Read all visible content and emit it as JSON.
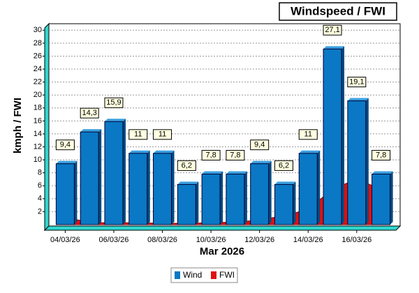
{
  "chart_data": {
    "type": "bar",
    "title": "Windspeed / FWI",
    "y_label": "kmph / FWI",
    "x_label": "Mar 2026",
    "categories": [
      "04/03/26",
      null,
      "06/03/26",
      null,
      "08/03/26",
      null,
      "10/03/26",
      null,
      "12/03/26",
      null,
      "14/03/26",
      null,
      "16/03/26",
      null
    ],
    "series": [
      {
        "name": "Wind",
        "color": "#0a78c4",
        "mark": "bar",
        "values": [
          9.4,
          14.3,
          15.9,
          11,
          11,
          6.2,
          7.8,
          7.8,
          9.4,
          6.2,
          11,
          27.1,
          19.1,
          7.8
        ],
        "value_labels": [
          "9,4",
          "14,3",
          "15,9",
          "11",
          "11",
          "6,2",
          "7,8",
          "7,8",
          "9,4",
          "6,2",
          "11",
          "27,1",
          "19,1",
          "7,8"
        ]
      },
      {
        "name": "FWI",
        "color": "#e01010",
        "mark": "area",
        "values": [
          1.2,
          0.3,
          0.3,
          0.3,
          0.2,
          0.2,
          0.3,
          0.4,
          0.7,
          1.4,
          2.3,
          5.5,
          7,
          5.5
        ]
      }
    ],
    "ylim": [
      0,
      31
    ],
    "yticks": [
      2,
      4,
      6,
      8,
      10,
      12,
      14,
      16,
      18,
      20,
      22,
      24,
      26,
      28,
      30
    ],
    "grid": true
  }
}
